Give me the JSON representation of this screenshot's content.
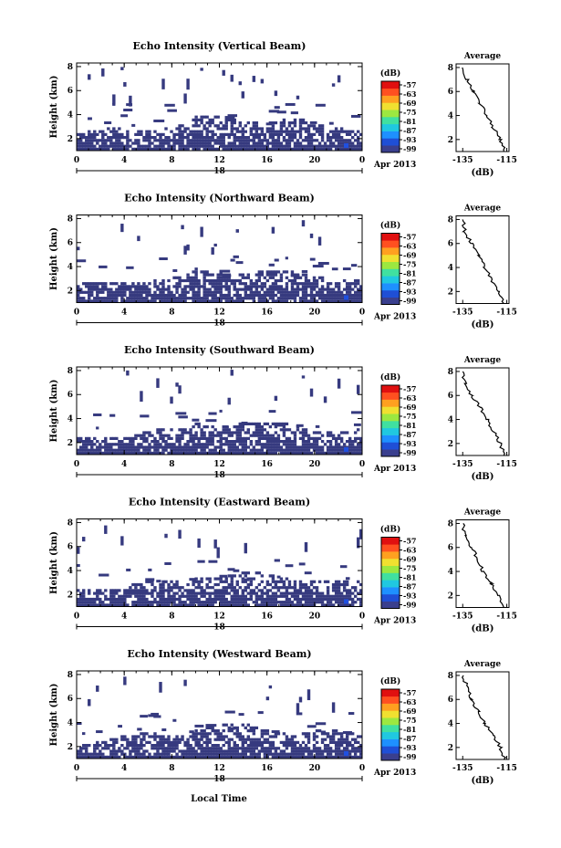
{
  "chart_data": {
    "type": "heatmap",
    "x_label_bottom": "Local Time",
    "date_label": "Apr 2013",
    "day_label": "18",
    "x_ticks": [
      "0",
      "4",
      "8",
      "12",
      "16",
      "20",
      "0"
    ],
    "y_label": "Height (km)",
    "y_ticks": [
      "2",
      "4",
      "6",
      "8"
    ],
    "colorbar_unit": "(dB)",
    "colorbar_ticks": [
      "-57",
      "-63",
      "-69",
      "-75",
      "-81",
      "-87",
      "-93",
      "-99"
    ],
    "colormap": [
      "#3a3f8e",
      "#1f4fd6",
      "#1e90ff",
      "#20c8e0",
      "#40e0a0",
      "#9ce840",
      "#f0e030",
      "#ffa020",
      "#ff5020",
      "#e01010"
    ],
    "avg_title": "Average",
    "avg_xlabel": "(dB)",
    "avg_x_ticks": [
      "-135",
      "-115"
    ],
    "avg_y_ticks": [
      "2",
      "4",
      "6",
      "8"
    ],
    "panels": [
      {
        "title": "Echo Intensity (Vertical Beam)",
        "avg_profile": [
          [
            -116,
            1
          ],
          [
            -118,
            2
          ],
          [
            -121,
            3
          ],
          [
            -124,
            4
          ],
          [
            -127,
            5
          ],
          [
            -130,
            6
          ],
          [
            -133,
            7
          ],
          [
            -135,
            8
          ]
        ]
      },
      {
        "title": "Echo Intensity (Northward Beam)",
        "avg_profile": [
          [
            -116,
            1
          ],
          [
            -119,
            2
          ],
          [
            -122,
            3
          ],
          [
            -125,
            4
          ],
          [
            -128,
            5
          ],
          [
            -131,
            6
          ],
          [
            -134,
            7
          ],
          [
            -135,
            8
          ]
        ]
      },
      {
        "title": "Echo Intensity (Southward Beam)",
        "avg_profile": [
          [
            -116,
            1
          ],
          [
            -118,
            2
          ],
          [
            -121,
            3
          ],
          [
            -124,
            4
          ],
          [
            -127,
            5
          ],
          [
            -131,
            6
          ],
          [
            -134,
            7
          ],
          [
            -135,
            8
          ]
        ]
      },
      {
        "title": "Echo Intensity (Eastward Beam)",
        "avg_profile": [
          [
            -116,
            1
          ],
          [
            -119,
            2
          ],
          [
            -122,
            3
          ],
          [
            -126,
            4
          ],
          [
            -128,
            5
          ],
          [
            -131,
            6
          ],
          [
            -134,
            7
          ],
          [
            -135,
            8
          ]
        ]
      },
      {
        "title": "Echo Intensity (Westward Beam)",
        "avg_profile": [
          [
            -116,
            1
          ],
          [
            -118,
            2
          ],
          [
            -121,
            3
          ],
          [
            -125,
            4
          ],
          [
            -128,
            5
          ],
          [
            -131,
            6
          ],
          [
            -133,
            7
          ],
          [
            -135,
            8
          ]
        ]
      }
    ]
  }
}
